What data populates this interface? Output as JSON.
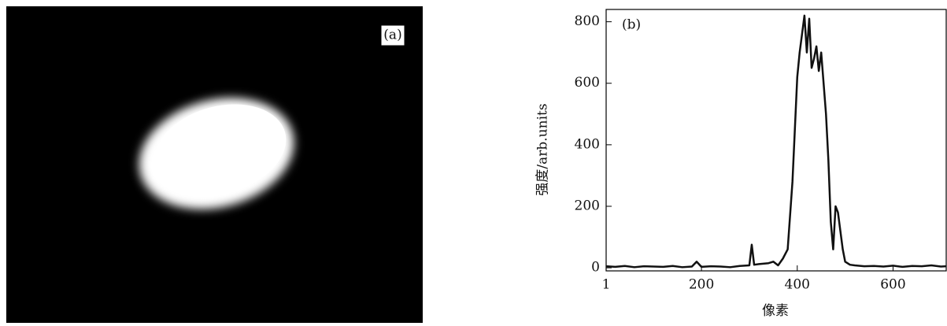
{
  "panel_a": {
    "label": "(a)"
  },
  "chart_data": {
    "type": "line",
    "annotation": "(b)",
    "x_label": "像素",
    "y_label": "强度/arb.units",
    "x": [
      1,
      20,
      40,
      60,
      80,
      100,
      120,
      140,
      160,
      180,
      190,
      200,
      220,
      240,
      260,
      280,
      300,
      305,
      310,
      320,
      340,
      350,
      360,
      370,
      380,
      390,
      395,
      400,
      405,
      410,
      415,
      420,
      425,
      430,
      435,
      440,
      445,
      450,
      455,
      460,
      465,
      470,
      475,
      480,
      485,
      490,
      495,
      500,
      510,
      520,
      540,
      560,
      580,
      600,
      620,
      640,
      660,
      680,
      700,
      711
    ],
    "series": [
      {
        "color": "#111111",
        "values": [
          5,
          3,
          6,
          2,
          5,
          4,
          3,
          6,
          2,
          4,
          20,
          3,
          5,
          4,
          2,
          6,
          8,
          75,
          10,
          12,
          15,
          20,
          8,
          30,
          60,
          280,
          450,
          620,
          700,
          760,
          820,
          700,
          810,
          650,
          680,
          720,
          640,
          700,
          600,
          500,
          350,
          150,
          60,
          200,
          180,
          120,
          60,
          20,
          10,
          8,
          5,
          6,
          4,
          7,
          3,
          6,
          5,
          8,
          4,
          5
        ]
      }
    ],
    "xlim": [
      1,
      711
    ],
    "ylim": [
      -10,
      840
    ],
    "xticks": [
      1,
      200,
      400,
      600
    ],
    "yticks": [
      0,
      200,
      400,
      600,
      800
    ]
  }
}
